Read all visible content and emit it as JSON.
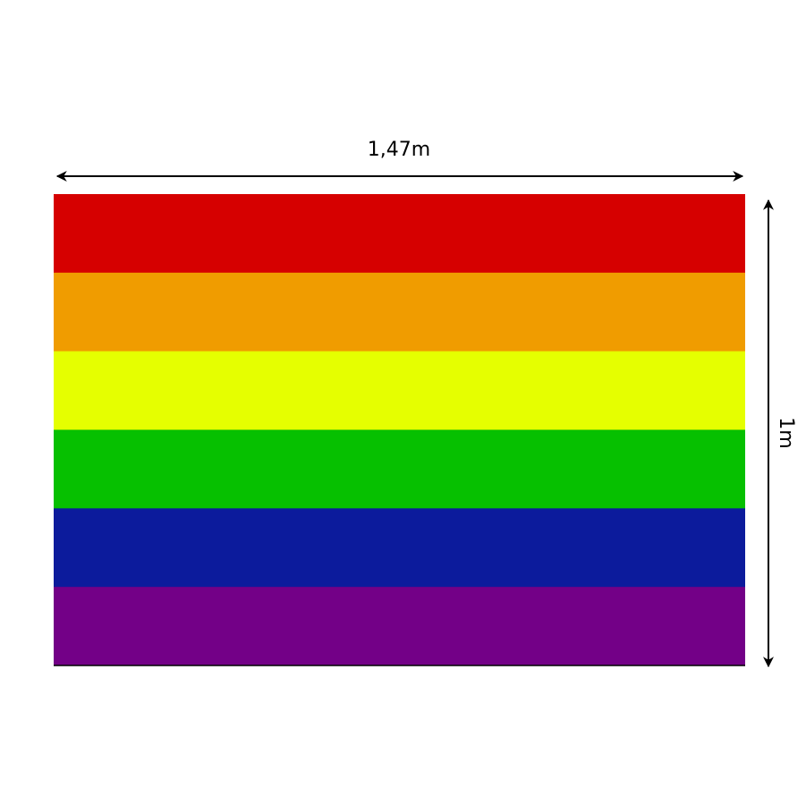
{
  "width_label": "1,47m",
  "height_label": "1m",
  "stripes": [
    {
      "name": "red",
      "color": "#d60000"
    },
    {
      "name": "orange",
      "color": "#f09c00"
    },
    {
      "name": "yellow",
      "color": "#e5ff00"
    },
    {
      "name": "green",
      "color": "#06c000"
    },
    {
      "name": "blue",
      "color": "#0c1b9c"
    },
    {
      "name": "purple",
      "color": "#730087"
    }
  ]
}
